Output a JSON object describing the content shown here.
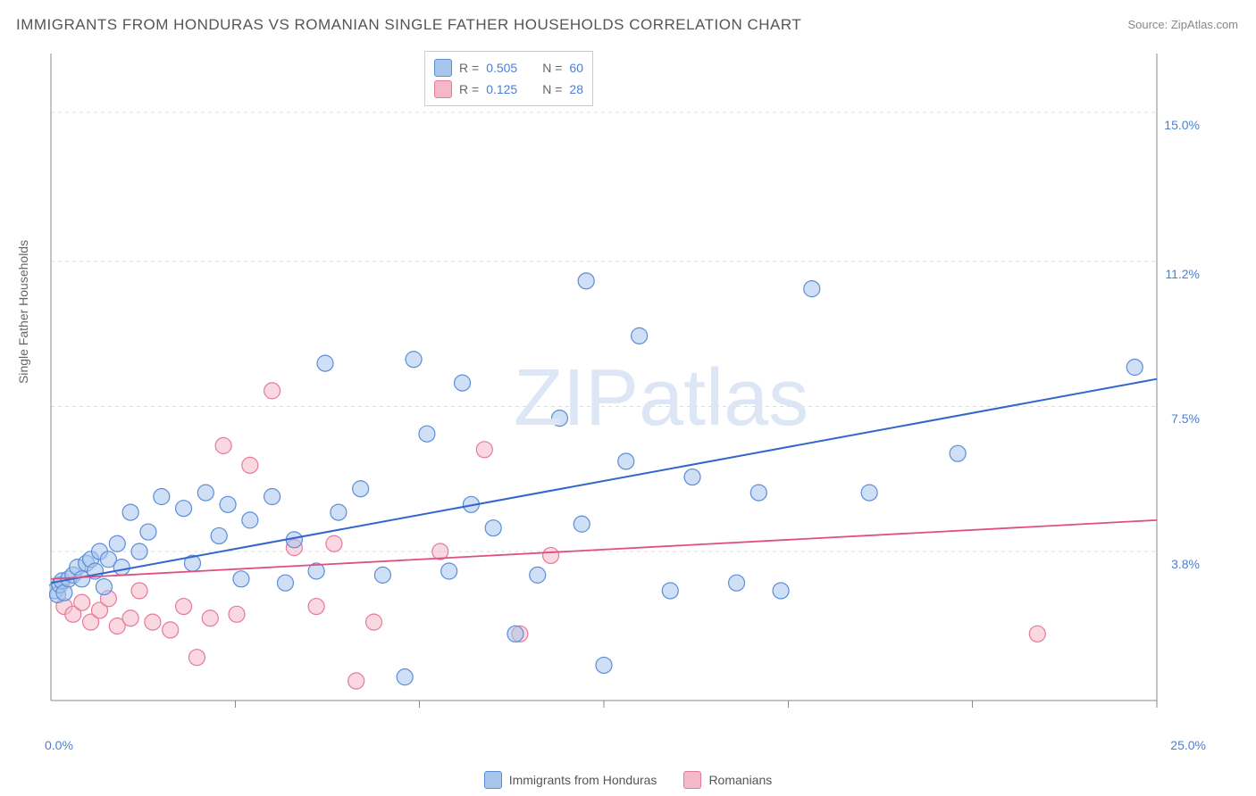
{
  "title": "IMMIGRANTS FROM HONDURAS VS ROMANIAN SINGLE FATHER HOUSEHOLDS CORRELATION CHART",
  "source": "Source: ZipAtlas.com",
  "ylabel": "Single Father Households",
  "watermark": "ZIPatlas",
  "chart": {
    "type": "scatter",
    "xlim": [
      0,
      25
    ],
    "ylim": [
      0,
      16.5
    ],
    "x_origin_label": "0.0%",
    "x_max_label": "25.0%",
    "x_ticks": [
      4.17,
      8.33,
      12.5,
      16.67,
      20.83,
      25.0
    ],
    "y_ticks": [
      {
        "val": 3.8,
        "label": "3.8%"
      },
      {
        "val": 7.5,
        "label": "7.5%"
      },
      {
        "val": 11.2,
        "label": "11.2%"
      },
      {
        "val": 15.0,
        "label": "15.0%"
      }
    ],
    "grid_color": "#dddddd",
    "axis_color": "#888888",
    "background_color": "#ffffff",
    "marker_radius": 9,
    "marker_stroke_width": 1.2,
    "series": [
      {
        "name": "honduras",
        "label": "Immigrants from Honduras",
        "fill": "#a8c5ec",
        "stroke": "#5b8dd6",
        "fill_opacity": 0.55,
        "R": "0.505",
        "N": "60",
        "trend": {
          "y0": 3.0,
          "y1": 8.2,
          "color": "#3366cc",
          "width": 2
        },
        "points": [
          [
            0.1,
            2.8
          ],
          [
            0.15,
            2.7
          ],
          [
            0.2,
            2.95
          ],
          [
            0.25,
            3.05
          ],
          [
            0.3,
            2.75
          ],
          [
            0.4,
            3.1
          ],
          [
            0.5,
            3.2
          ],
          [
            0.6,
            3.4
          ],
          [
            0.7,
            3.1
          ],
          [
            0.8,
            3.5
          ],
          [
            0.9,
            3.6
          ],
          [
            1.0,
            3.3
          ],
          [
            1.1,
            3.8
          ],
          [
            1.3,
            3.6
          ],
          [
            1.5,
            4.0
          ],
          [
            1.6,
            3.4
          ],
          [
            1.8,
            4.8
          ],
          [
            2.0,
            3.8
          ],
          [
            2.2,
            4.3
          ],
          [
            2.5,
            5.2
          ],
          [
            3.0,
            4.9
          ],
          [
            3.2,
            3.5
          ],
          [
            3.5,
            5.3
          ],
          [
            3.8,
            4.2
          ],
          [
            4.0,
            5.0
          ],
          [
            4.3,
            3.1
          ],
          [
            4.5,
            4.6
          ],
          [
            5.0,
            5.2
          ],
          [
            5.3,
            3.0
          ],
          [
            5.5,
            4.1
          ],
          [
            6.0,
            3.3
          ],
          [
            6.2,
            8.6
          ],
          [
            6.5,
            4.8
          ],
          [
            7.0,
            5.4
          ],
          [
            7.5,
            3.2
          ],
          [
            8.0,
            0.6
          ],
          [
            8.2,
            8.7
          ],
          [
            8.5,
            6.8
          ],
          [
            9.0,
            3.3
          ],
          [
            9.3,
            8.1
          ],
          [
            9.5,
            5.0
          ],
          [
            10.0,
            4.4
          ],
          [
            10.5,
            1.7
          ],
          [
            11.0,
            3.2
          ],
          [
            11.5,
            7.2
          ],
          [
            12.0,
            4.5
          ],
          [
            12.1,
            10.7
          ],
          [
            12.5,
            0.9
          ],
          [
            13.0,
            6.1
          ],
          [
            13.3,
            9.3
          ],
          [
            14.0,
            2.8
          ],
          [
            14.5,
            5.7
          ],
          [
            15.5,
            3.0
          ],
          [
            16.0,
            5.3
          ],
          [
            16.5,
            2.8
          ],
          [
            17.2,
            10.5
          ],
          [
            18.5,
            5.3
          ],
          [
            20.5,
            6.3
          ],
          [
            24.5,
            8.5
          ],
          [
            1.2,
            2.9
          ]
        ]
      },
      {
        "name": "romanians",
        "label": "Romanians",
        "fill": "#f5b8c8",
        "stroke": "#e47a9a",
        "fill_opacity": 0.55,
        "R": "0.125",
        "N": "28",
        "trend": {
          "y0": 3.1,
          "y1": 4.6,
          "color": "#e04f7d",
          "width": 1.8
        },
        "points": [
          [
            0.3,
            2.4
          ],
          [
            0.5,
            2.2
          ],
          [
            0.7,
            2.5
          ],
          [
            0.9,
            2.0
          ],
          [
            1.1,
            2.3
          ],
          [
            1.3,
            2.6
          ],
          [
            1.5,
            1.9
          ],
          [
            1.8,
            2.1
          ],
          [
            2.0,
            2.8
          ],
          [
            2.3,
            2.0
          ],
          [
            2.7,
            1.8
          ],
          [
            3.0,
            2.4
          ],
          [
            3.3,
            1.1
          ],
          [
            3.6,
            2.1
          ],
          [
            3.9,
            6.5
          ],
          [
            4.2,
            2.2
          ],
          [
            4.5,
            6.0
          ],
          [
            5.0,
            7.9
          ],
          [
            5.5,
            3.9
          ],
          [
            6.0,
            2.4
          ],
          [
            6.4,
            4.0
          ],
          [
            6.9,
            0.5
          ],
          [
            7.3,
            2.0
          ],
          [
            8.8,
            3.8
          ],
          [
            9.8,
            6.4
          ],
          [
            10.6,
            1.7
          ],
          [
            11.3,
            3.7
          ],
          [
            22.3,
            1.7
          ]
        ]
      }
    ]
  },
  "legend_top": {
    "r_label": "R =",
    "n_label": "N ="
  },
  "colors": {
    "tick_text": "#4a7fd8"
  }
}
